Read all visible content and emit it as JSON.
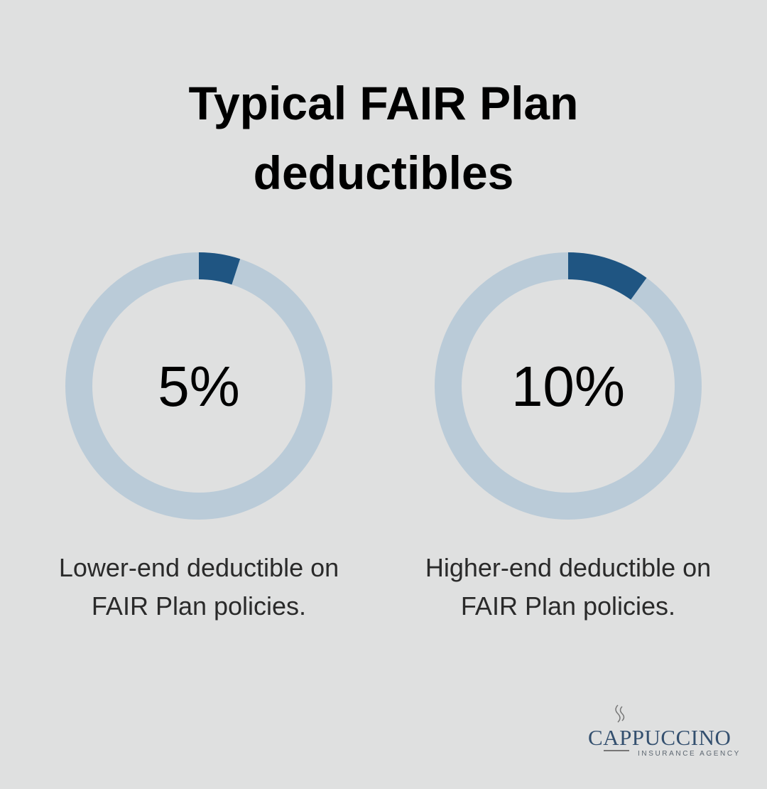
{
  "title": "Typical FAIR Plan deductibles",
  "chart_data": [
    {
      "type": "donut",
      "values": [
        5
      ],
      "value_labels": [
        "5%"
      ],
      "caption": "Lower-end deductible on FAIR Plan policies.",
      "color": "#1f5582",
      "track_color": "#bacbd8"
    },
    {
      "type": "donut",
      "values": [
        10
      ],
      "value_labels": [
        "10%"
      ],
      "caption": "Higher-end deductible on FAIR Plan policies.",
      "color": "#1f5582",
      "track_color": "#bacbd8"
    }
  ],
  "logo": {
    "name": "CAPPUCCINO",
    "tagline": "INSURANCE AGENCY"
  }
}
